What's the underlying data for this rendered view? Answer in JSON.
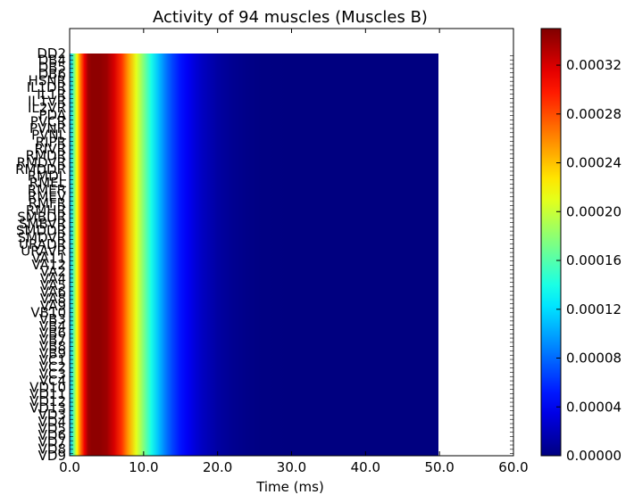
{
  "chart_data": {
    "type": "heatmap",
    "title": "Activity of 94 muscles (Muscles B)",
    "xlabel": "Time (ms)",
    "ylabel": "",
    "xlim": [
      0,
      60
    ],
    "x_ticks": [
      "0.0",
      "10.0",
      "20.0",
      "30.0",
      "40.0",
      "50.0",
      "60.0"
    ],
    "data_x_range": [
      0,
      50
    ],
    "row_count": 94,
    "row_labels": [
      "DD2",
      "DB4",
      "DB5",
      "DB6",
      "HSNR",
      "IL1DR",
      "IL1R",
      "IL1VR",
      "IL2VR",
      "PDA",
      "PVCR",
      "PVNR",
      "PVNL",
      "RIPR",
      "RIVR",
      "RMDR",
      "RMDVR",
      "RMDDR",
      "RMDL",
      "RMEL",
      "RMER",
      "RMEV",
      "RMFR",
      "RMHR",
      "SMBDR",
      "SMBVR",
      "SMDDR",
      "SMDVR",
      "URADR",
      "URAVR",
      "VA11",
      "VA12",
      "VA2",
      "VA4",
      "VA5",
      "VA6",
      "VA8",
      "VA9",
      "VB10",
      "VB3",
      "VB4",
      "VB6",
      "VB7",
      "VB8",
      "VB9",
      "VC1",
      "VC2",
      "VC3",
      "VC4",
      "VD10",
      "VD11",
      "VD12",
      "VD13",
      "VD3",
      "VD4",
      "VD5",
      "VD6",
      "VD7",
      "VD8",
      "VD9"
    ],
    "activity_profile": {
      "t_ms": [
        0,
        0.5,
        1.0,
        1.5,
        2.0,
        2.5,
        3.0,
        4.0,
        5.0,
        6.0,
        7.0,
        8.0,
        9.0,
        10.0,
        11.0,
        12.0,
        13.0,
        14.0,
        15.0,
        16.0,
        17.0,
        18.0,
        20.0,
        22.0,
        24.0,
        26.0,
        30.0,
        40.0,
        50.0
      ],
      "value": [
        0.0001,
        0.00016,
        0.00022,
        0.00027,
        0.00031,
        0.00034,
        0.000345,
        0.000345,
        0.00034,
        0.00032,
        0.00029,
        0.00025,
        0.00021,
        0.000175,
        0.00014,
        0.00011,
        8.5e-05,
        6.5e-05,
        5e-05,
        4e-05,
        3e-05,
        2.2e-05,
        1.2e-05,
        6e-06,
        3e-06,
        1e-06,
        0.0,
        0.0,
        0.0
      ]
    },
    "colormap": "jet",
    "colorbar": {
      "range": [
        0,
        0.00035
      ],
      "ticks": [
        0,
        4e-05,
        8e-05,
        0.00012,
        0.00016,
        0.0002,
        0.00024,
        0.00028,
        0.00032
      ],
      "tick_labels": [
        "0.00000",
        "0.00004",
        "0.00008",
        "0.00012",
        "0.00016",
        "0.00020",
        "0.00024",
        "0.00028",
        "0.00032"
      ]
    },
    "grid": false,
    "legend": "none"
  }
}
